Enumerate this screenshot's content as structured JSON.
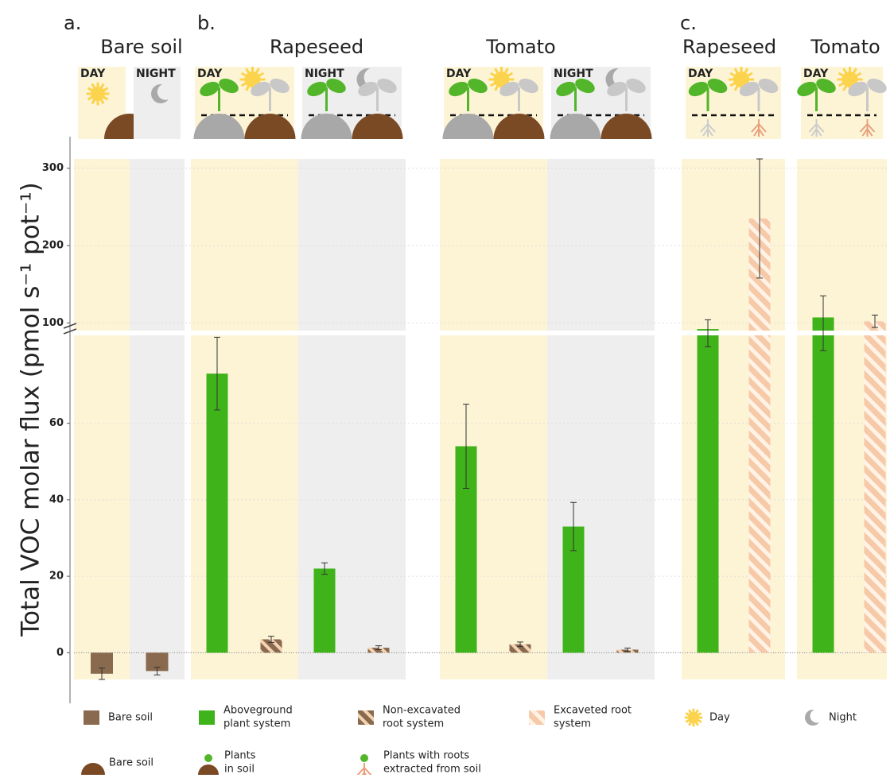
{
  "chart_data": {
    "type": "bar",
    "y_label": "Total VOC molar flux (pmol s⁻¹ pot⁻¹)",
    "lower_axis": {
      "ylim": [
        -7,
        83
      ],
      "yticks": [
        0,
        20,
        40,
        60
      ]
    },
    "upper_axis": {
      "ylim": [
        90,
        312
      ],
      "yticks": [
        100,
        200,
        300
      ]
    },
    "panels": [
      {
        "label": "a.",
        "title": "Bare soil",
        "conditions": [
          {
            "name": "DAY",
            "bars": [
              {
                "s": 0,
                "value": -5.5,
                "error": 1.5
              }
            ]
          },
          {
            "name": "NIGHT",
            "bars": [
              {
                "s": 0,
                "value": -4.8,
                "error": 1.0
              }
            ]
          }
        ]
      },
      {
        "label": "b.",
        "title": "Rapeseed",
        "conditions": [
          {
            "name": "DAY",
            "bars": [
              {
                "s": 1,
                "value": 73,
                "error": 9.5
              },
              {
                "s": 2,
                "value": 3.5,
                "error": 0.8
              }
            ]
          },
          {
            "name": "NIGHT",
            "bars": [
              {
                "s": 1,
                "value": 22,
                "error": 1.5
              },
              {
                "s": 2,
                "value": 1.3,
                "error": 0.5
              }
            ]
          }
        ]
      },
      {
        "title": "Tomato",
        "conditions": [
          {
            "name": "DAY",
            "bars": [
              {
                "s": 1,
                "value": 54,
                "error": 11
              },
              {
                "s": 2,
                "value": 2.2,
                "error": 0.6
              }
            ]
          },
          {
            "name": "NIGHT",
            "bars": [
              {
                "s": 1,
                "value": 33,
                "error": 6.3
              },
              {
                "s": 2,
                "value": 0.8,
                "error": 0.4
              }
            ]
          }
        ]
      },
      {
        "label": "c.",
        "title": "Rapeseed",
        "conditions": [
          {
            "name": "DAY",
            "bars": [
              {
                "s": 1,
                "value": 92,
                "error": 12
              },
              {
                "s": 3,
                "value": 235,
                "error": 77
              }
            ]
          }
        ]
      },
      {
        "title": "Tomato",
        "conditions": [
          {
            "name": "DAY",
            "bars": [
              {
                "s": 1,
                "value": 107,
                "error": 28
              },
              {
                "s": 3,
                "value": 102,
                "error": 8
              }
            ]
          }
        ]
      }
    ],
    "legend": [
      {
        "lines": [
          "Bare soil"
        ],
        "color": "#8a6a4e",
        "pattern": "solid"
      },
      {
        "lines": [
          "Aboveground",
          "plant system"
        ],
        "color": "#3fb31a",
        "pattern": "solid"
      },
      {
        "lines": [
          "Non-excavated",
          "root system"
        ],
        "color": "#8a6a4e",
        "pattern": "stripes"
      },
      {
        "lines": [
          "Excaveted root",
          "system"
        ],
        "color": "#f6c9a8",
        "pattern": "hatch"
      }
    ],
    "icon_legend": [
      {
        "lines": [
          "Day"
        ],
        "icon": "sun"
      },
      {
        "lines": [
          "Night"
        ],
        "icon": "moon"
      },
      {
        "lines": [
          "Bare soil"
        ],
        "icon": "soil"
      },
      {
        "lines": [
          "Plants",
          "in soil"
        ],
        "icon": "plant-soil"
      },
      {
        "lines": [
          "Plants with roots",
          "extracted from soil"
        ],
        "icon": "plant-roots"
      }
    ]
  }
}
